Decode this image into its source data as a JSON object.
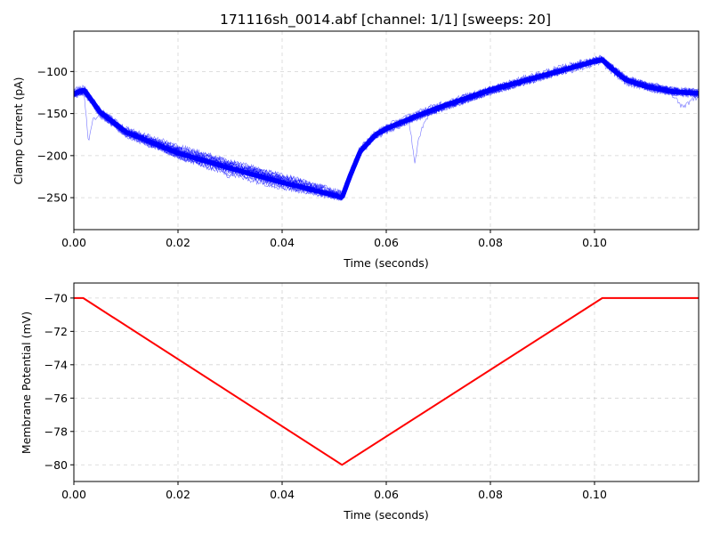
{
  "chart_data": [
    {
      "type": "line",
      "title": "171116sh_0014.abf [channel: 1/1] [sweeps: 20]",
      "xlabel": "Time (seconds)",
      "ylabel": "Clamp Current (pA)",
      "xlim": [
        0,
        0.12
      ],
      "ylim": [
        -288,
        -52
      ],
      "xticks": [
        0.0,
        0.02,
        0.04,
        0.06,
        0.08,
        0.1
      ],
      "xtick_labels": [
        "0.00",
        "0.02",
        "0.04",
        "0.06",
        "0.08",
        "0.10"
      ],
      "yticks": [
        -250,
        -200,
        -150,
        -100
      ],
      "ytick_labels": [
        "−250",
        "−200",
        "−150",
        "−100"
      ],
      "grid": true,
      "sweep_count": 20,
      "series_color": "#0000ff",
      "series": [
        {
          "x": [
            0.0,
            0.002,
            0.005,
            0.01,
            0.02,
            0.03,
            0.04,
            0.05,
            0.0515,
            0.053,
            0.055,
            0.058,
            0.06,
            0.065,
            0.07,
            0.08,
            0.09,
            0.1,
            0.1015,
            0.103,
            0.106,
            0.11,
            0.115,
            0.12
          ],
          "values": [
            -126,
            -122,
            -148,
            -172,
            -197,
            -215,
            -232,
            -247,
            -250,
            -225,
            -195,
            -175,
            -168,
            -155,
            -143,
            -122,
            -105,
            -88,
            -86,
            -95,
            -110,
            -118,
            -124,
            -126
          ]
        }
      ]
    },
    {
      "type": "line",
      "title": "",
      "xlabel": "Time (seconds)",
      "ylabel": "Membrane Potential (mV)",
      "xlim": [
        0,
        0.12
      ],
      "ylim": [
        -81,
        -69.1
      ],
      "xticks": [
        0.0,
        0.02,
        0.04,
        0.06,
        0.08,
        0.1
      ],
      "xtick_labels": [
        "0.00",
        "0.02",
        "0.04",
        "0.06",
        "0.08",
        "0.10"
      ],
      "yticks": [
        -80,
        -78,
        -76,
        -74,
        -72,
        -70
      ],
      "ytick_labels": [
        "−80",
        "−78",
        "−76",
        "−74",
        "−72",
        "−70"
      ],
      "grid": true,
      "series_color": "#ff0000",
      "series": [
        {
          "x": [
            0.0,
            0.0018,
            0.0515,
            0.1015,
            0.12
          ],
          "values": [
            -70,
            -70,
            -80,
            -70,
            -70
          ]
        }
      ]
    }
  ]
}
